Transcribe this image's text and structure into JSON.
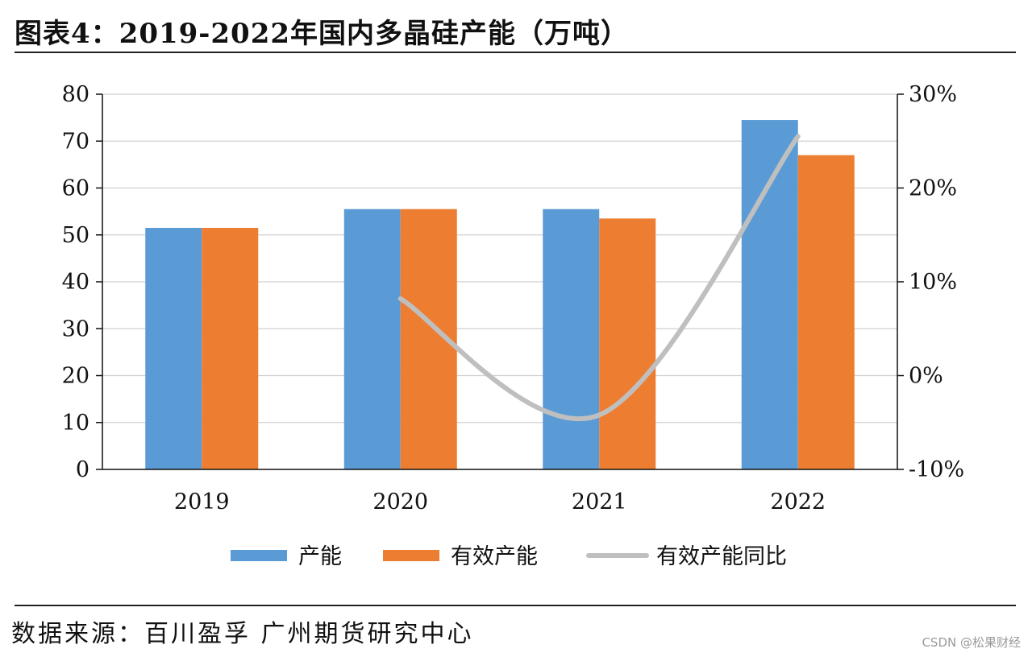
{
  "header": {
    "title": "图表4：2019-2022年国内多晶硅产能（万吨）"
  },
  "footer": {
    "source": "数据来源：百川盈孚 广州期货研究中心",
    "watermark": "CSDN @松果财经"
  },
  "chart_data": {
    "type": "bar",
    "categories": [
      "2019",
      "2020",
      "2021",
      "2022"
    ],
    "series": [
      {
        "name": "产能",
        "type": "bar",
        "axis": "left",
        "color": "#5B9BD5",
        "values": [
          51.5,
          55.5,
          55.5,
          74.5
        ]
      },
      {
        "name": "有效产能",
        "type": "bar",
        "axis": "left",
        "color": "#ED7D31",
        "values": [
          51.5,
          55.5,
          53.5,
          67
        ]
      },
      {
        "name": "有效产能同比",
        "type": "line",
        "axis": "right",
        "color": "#BFBFBF",
        "values": [
          null,
          8.2,
          -4.2,
          25.5
        ]
      }
    ],
    "ylim": [
      0,
      80
    ],
    "yticks": [
      "0",
      "10",
      "20",
      "30",
      "40",
      "50",
      "60",
      "70",
      "80"
    ],
    "y2lim": [
      -10,
      30
    ],
    "y2ticks": [
      "-10%",
      "0%",
      "10%",
      "20%",
      "30%"
    ],
    "grid": true,
    "legend": "bottom"
  }
}
